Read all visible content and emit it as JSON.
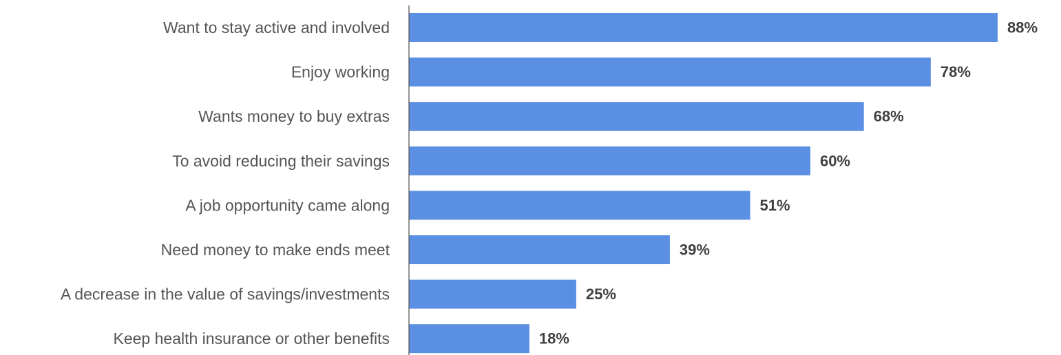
{
  "chart_data": {
    "type": "bar",
    "orientation": "horizontal",
    "title": "",
    "xlabel": "",
    "ylabel": "",
    "categories": [
      "Want to stay active and involved",
      "Enjoy working",
      "Wants money to buy extras",
      "To avoid reducing their savings",
      "A job opportunity came along",
      "Need money to make ends meet",
      "A decrease in the value of savings/investments",
      "Keep health insurance or other benefits"
    ],
    "values": [
      88,
      78,
      68,
      60,
      51,
      39,
      25,
      18
    ],
    "value_labels": [
      "88%",
      "78%",
      "68%",
      "60%",
      "51%",
      "39%",
      "25%",
      "18%"
    ],
    "unit": "%",
    "xlim": [
      0,
      100
    ],
    "grid": false,
    "legend": "none",
    "colors": {
      "bar": "#5B8FE3",
      "axis": "#595959",
      "category_text": "#555555",
      "value_text": "#404040"
    }
  }
}
